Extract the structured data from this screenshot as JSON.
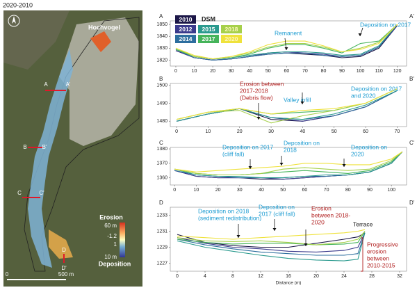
{
  "header": {
    "title": "2020-2010"
  },
  "map": {
    "place_name": "Hochvogel",
    "section_labels": [
      "A",
      "A'",
      "B",
      "B'",
      "C",
      "C'",
      "D",
      "D'"
    ],
    "colorbar": {
      "top": "Erosion",
      "labels": [
        "60 m",
        "-1.2",
        "1",
        "10 m"
      ],
      "bottom": "Deposition"
    },
    "scale_bar": [
      "0",
      "500 m"
    ]
  },
  "chart_data": [
    {
      "type": "line",
      "start_label": "A",
      "end_label": "A'",
      "legend_title": "DSM",
      "x": [
        0,
        10,
        20,
        30,
        40,
        50,
        60,
        70,
        80,
        90,
        100,
        110,
        120
      ],
      "xlim": [
        -3,
        125
      ],
      "xticks": [
        0,
        10,
        20,
        30,
        40,
        50,
        60,
        70,
        80,
        90,
        100,
        110,
        120
      ],
      "ylim": [
        1815,
        1853
      ],
      "yticks": [
        1820,
        1830,
        1840,
        1850
      ],
      "series": [
        {
          "name": "2010",
          "color": "#1c1748",
          "values": [
            1828,
            1822,
            1820,
            1821,
            1823,
            1825,
            1826,
            1825,
            1824,
            1822,
            1823,
            1830,
            1849
          ]
        },
        {
          "name": "2012",
          "color": "#3a3a8c",
          "values": [
            1828,
            1822,
            1820,
            1821,
            1823,
            1826,
            1827,
            1826,
            1825,
            1823,
            1824,
            1831,
            1849
          ]
        },
        {
          "name": "2014",
          "color": "#2d6e9e",
          "values": [
            1829,
            1822,
            1820,
            1821,
            1823,
            1825,
            1826,
            1826,
            1824,
            1823,
            1824,
            1831,
            1850
          ]
        },
        {
          "name": "2015",
          "color": "#2a9a8e",
          "values": [
            1829,
            1823,
            1821,
            1822,
            1824,
            1826,
            1827,
            1827,
            1826,
            1824,
            1825,
            1832,
            1850
          ]
        },
        {
          "name": "2017",
          "color": "#45b45a",
          "values": [
            1829,
            1823,
            1821,
            1822,
            1825,
            1830,
            1833,
            1833,
            1830,
            1826,
            1834,
            1836,
            1850
          ]
        },
        {
          "name": "2018",
          "color": "#a6d04a",
          "values": [
            1830,
            1823,
            1821,
            1823,
            1826,
            1831,
            1834,
            1834,
            1831,
            1827,
            1830,
            1835,
            1850
          ]
        },
        {
          "name": "2020",
          "color": "#efe23c",
          "values": [
            1830,
            1824,
            1821,
            1823,
            1827,
            1833,
            1836,
            1836,
            1832,
            1827,
            1829,
            1834,
            1850
          ]
        }
      ],
      "annotations": [
        {
          "lines": [
            "Remanent"
          ],
          "color": "#1b9bd1"
        },
        {
          "lines": [
            "Deposition on 2017"
          ],
          "color": "#1b9bd1"
        }
      ]
    },
    {
      "type": "line",
      "start_label": "B",
      "end_label": "B'",
      "x": [
        0,
        10,
        20,
        30,
        40,
        50,
        60,
        70
      ],
      "xlim": [
        -2,
        73
      ],
      "xticks": [
        0,
        10,
        20,
        30,
        40,
        50,
        60,
        70
      ],
      "ylim": [
        1477,
        1501
      ],
      "yticks": [
        1480,
        1490,
        1500
      ],
      "series": [
        {
          "color": "#1c1748",
          "values": [
            1480,
            1484,
            1487,
            1481,
            1480,
            1483,
            1488,
            1497
          ]
        },
        {
          "color": "#3a3a8c",
          "values": [
            1480,
            1484,
            1487,
            1482,
            1480,
            1483,
            1488,
            1497
          ]
        },
        {
          "color": "#2d6e9e",
          "values": [
            1480,
            1484,
            1487,
            1482,
            1481,
            1483,
            1488,
            1497
          ]
        },
        {
          "color": "#2a9a8e",
          "values": [
            1480,
            1484,
            1487,
            1482,
            1481,
            1484,
            1489,
            1497
          ]
        },
        {
          "color": "#45b45a",
          "values": [
            1481,
            1485,
            1487,
            1484,
            1485,
            1486,
            1490,
            1498
          ]
        },
        {
          "color": "#a6d04a",
          "values": [
            1481,
            1485,
            1486,
            1479,
            1483,
            1486,
            1490,
            1498
          ]
        },
        {
          "color": "#efe23c",
          "values": [
            1481,
            1485,
            1487,
            1484,
            1486,
            1487,
            1490,
            1498
          ]
        }
      ],
      "annotations": [
        {
          "lines": [
            "Erosion between",
            "2017-2018",
            "(Debris flow)"
          ],
          "color": "#b01c1c"
        },
        {
          "lines": [
            "Valley infill"
          ],
          "color": "#1b9bd1"
        },
        {
          "lines": [
            "Deposition on 2017",
            "and 2020"
          ],
          "color": "#1b9bd1"
        }
      ]
    },
    {
      "type": "line",
      "start_label": "C",
      "end_label": "C'",
      "x": [
        0,
        10,
        20,
        30,
        40,
        50,
        60,
        70,
        80,
        90,
        100,
        105
      ],
      "xlim": [
        -2,
        107
      ],
      "xticks": [
        0,
        10,
        20,
        30,
        40,
        50,
        60,
        70,
        80,
        90,
        100
      ],
      "ylim": [
        1355,
        1381
      ],
      "yticks": [
        1360,
        1370,
        1380
      ],
      "series": [
        {
          "color": "#1c1748",
          "values": [
            1365,
            1361,
            1360,
            1360,
            1359,
            1359,
            1360,
            1361,
            1362,
            1364,
            1370,
            1378
          ]
        },
        {
          "color": "#3a3a8c",
          "values": [
            1365,
            1361,
            1360,
            1360,
            1360,
            1359,
            1360,
            1361,
            1362,
            1364,
            1370,
            1378
          ]
        },
        {
          "color": "#2d6e9e",
          "values": [
            1365,
            1362,
            1361,
            1360,
            1360,
            1360,
            1361,
            1361,
            1362,
            1364,
            1370,
            1378
          ]
        },
        {
          "color": "#2a9a8e",
          "values": [
            1366,
            1362,
            1361,
            1361,
            1360,
            1360,
            1361,
            1362,
            1362,
            1364,
            1370,
            1378
          ]
        },
        {
          "color": "#45b45a",
          "values": [
            1366,
            1363,
            1362,
            1362,
            1363,
            1364,
            1365,
            1364,
            1363,
            1365,
            1371,
            1378
          ]
        },
        {
          "color": "#a6d04a",
          "values": [
            1366,
            1363,
            1362,
            1362,
            1363,
            1366,
            1367,
            1366,
            1365,
            1366,
            1372,
            1378
          ]
        },
        {
          "color": "#efe23c",
          "values": [
            1366,
            1364,
            1365,
            1366,
            1367,
            1368,
            1370,
            1370,
            1369,
            1369,
            1373,
            1378
          ]
        }
      ],
      "annotations": [
        {
          "lines": [
            "Deposition on 2017",
            "(cliff fall)"
          ],
          "color": "#1b9bd1"
        },
        {
          "lines": [
            "Deposition on",
            "2018"
          ],
          "color": "#1b9bd1"
        },
        {
          "lines": [
            "Deposition on",
            "2020"
          ],
          "color": "#1b9bd1"
        }
      ]
    },
    {
      "type": "line",
      "start_label": "D",
      "end_label": "D'",
      "x_label": "Distance (m)",
      "x": [
        0,
        4,
        8,
        12,
        16,
        20,
        24,
        26,
        27
      ],
      "xlim": [
        -1,
        33
      ],
      "xticks": [
        0,
        4,
        8,
        12,
        16,
        20,
        24,
        28,
        32
      ],
      "ylim": [
        1226,
        1234
      ],
      "yticks": [
        1227,
        1229,
        1231,
        1233
      ],
      "series": [
        {
          "color": "#1c1748",
          "values": [
            1230.6,
            1229.6,
            1229.2,
            1229.0,
            1229.0,
            1229.5,
            1230.0,
            1230.3,
            1230.8
          ]
        },
        {
          "color": "#3a3a8c",
          "values": [
            1230.2,
            1229.5,
            1229.0,
            1228.8,
            1228.5,
            1228.4,
            1228.6,
            1229.0,
            1230.8
          ]
        },
        {
          "color": "#2d6e9e",
          "values": [
            1230.0,
            1229.3,
            1228.8,
            1228.4,
            1228.2,
            1228.0,
            1228.0,
            1228.2,
            1230.8
          ]
        },
        {
          "color": "#2a9a8e",
          "values": [
            1229.8,
            1229.0,
            1228.5,
            1228.0,
            1227.6,
            1227.4,
            1227.3,
            1227.5,
            1230.8
          ]
        },
        {
          "color": "#45b45a",
          "values": [
            1230.0,
            1229.6,
            1229.4,
            1229.5,
            1229.5,
            1229.3,
            1229.4,
            1229.6,
            1231.0
          ]
        },
        {
          "color": "#a6d04a",
          "values": [
            1230.2,
            1229.8,
            1229.7,
            1229.8,
            1229.6,
            1229.3,
            1229.6,
            1230.0,
            1231.0
          ]
        },
        {
          "color": "#efe23c",
          "values": [
            1230.4,
            1230.2,
            1230.0,
            1230.2,
            1230.4,
            1230.6,
            1230.8,
            1231.0,
            1231.2
          ]
        }
      ],
      "annotations": [
        {
          "lines": [
            "Deposition on 2018",
            "(sediment redistribution)"
          ],
          "color": "#1b9bd1"
        },
        {
          "lines": [
            "Deposition on",
            "2017 (cliff fall)"
          ],
          "color": "#1b9bd1"
        },
        {
          "lines": [
            "Erosion",
            "between 2018-",
            "2020"
          ],
          "color": "#b01c1c"
        },
        {
          "lines": [
            "Terrace"
          ],
          "color": "#111111"
        },
        {
          "lines": [
            "Progressive",
            "erosion",
            "between",
            "2010-2015"
          ],
          "color": "#b01c1c"
        }
      ]
    }
  ]
}
